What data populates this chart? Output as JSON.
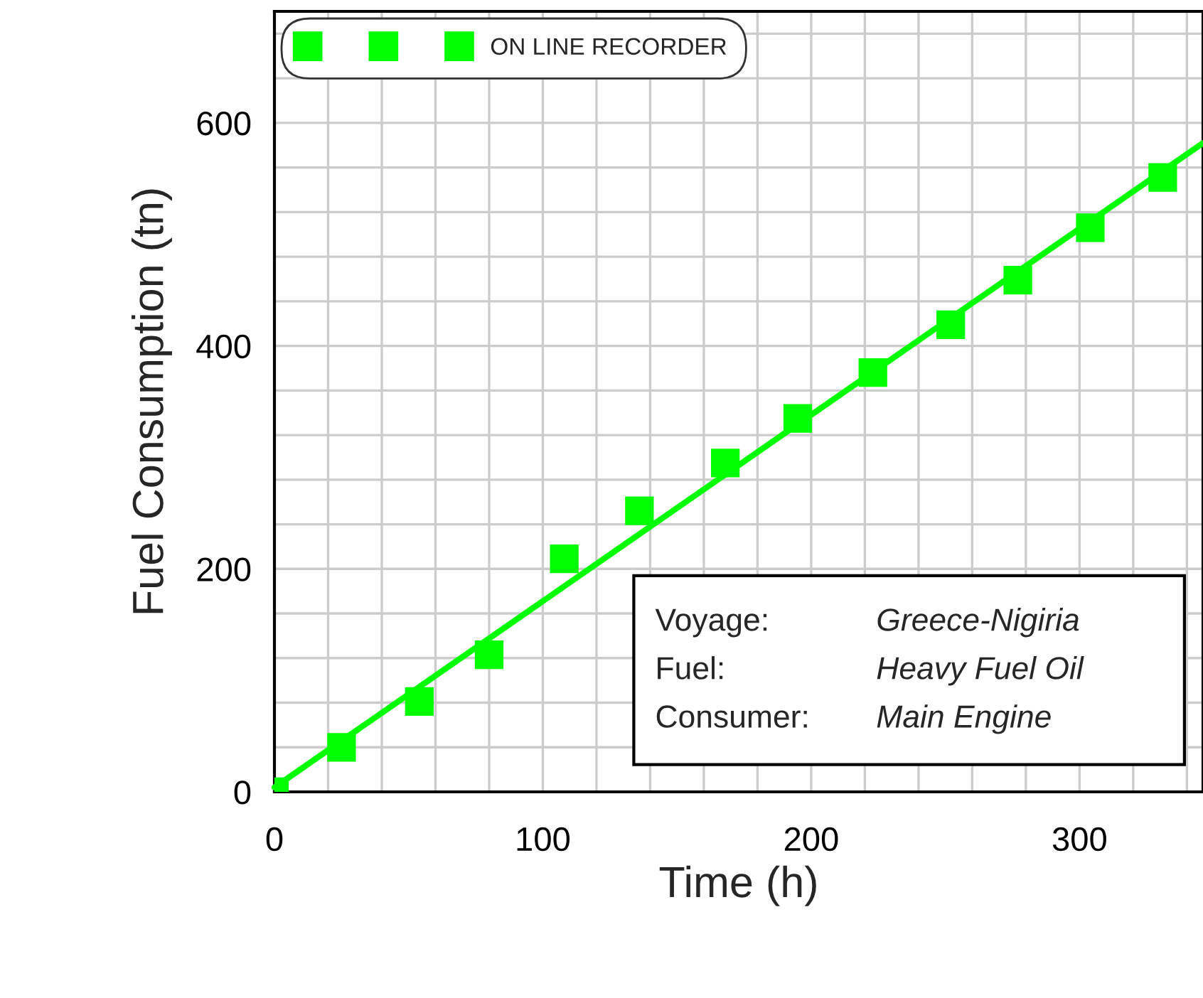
{
  "chart_data": {
    "type": "scatter",
    "xlabel": "Time (h)",
    "ylabel": "Fuel Consumption (tn)",
    "xlim": [
      0,
      346
    ],
    "ylim": [
      0,
      700
    ],
    "xticks": [
      0,
      {
        "value": 20,
        "label": null
      },
      {
        "value": 40,
        "label": null
      },
      {
        "value": 60,
        "label": null
      },
      {
        "value": 80,
        "label": null
      },
      100,
      {
        "value": 120,
        "label": null
      },
      {
        "value": 140,
        "label": null
      },
      {
        "value": 160,
        "label": null
      },
      {
        "value": 180,
        "label": null
      },
      200,
      {
        "value": 220,
        "label": null
      },
      {
        "value": 240,
        "label": null
      },
      {
        "value": 260,
        "label": null
      },
      {
        "value": 280,
        "label": null
      },
      300,
      {
        "value": 320,
        "label": null
      },
      {
        "value": 340,
        "label": null
      }
    ],
    "yticks": [
      0,
      {
        "value": 40,
        "label": null
      },
      {
        "value": 80,
        "label": null
      },
      {
        "value": 120,
        "label": null
      },
      {
        "value": 160,
        "label": null
      },
      200,
      {
        "value": 240,
        "label": null
      },
      {
        "value": 280,
        "label": null
      },
      {
        "value": 320,
        "label": null
      },
      {
        "value": 360,
        "label": null
      },
      400,
      {
        "value": 440,
        "label": null
      },
      {
        "value": 480,
        "label": null
      },
      {
        "value": 520,
        "label": null
      },
      {
        "value": 560,
        "label": null
      },
      600,
      {
        "value": 640,
        "label": null
      },
      {
        "value": 680,
        "label": null
      }
    ],
    "grid": true,
    "legend": "top left",
    "series": [
      {
        "name": "ON LINE RECORDER",
        "marker": "square",
        "color": "#00ff00",
        "x": [
          0,
          25,
          54,
          80,
          108,
          136,
          168,
          195,
          223,
          252,
          277,
          304,
          331
        ],
        "values": [
          0,
          40,
          81,
          123,
          209,
          252,
          295,
          335,
          376,
          419,
          459,
          506,
          551
        ]
      },
      {
        "type": "line",
        "color": "#00ff00",
        "x": [
          0,
          346
        ],
        "values": [
          4,
          582
        ]
      }
    ],
    "annotations": [
      "Voyage:",
      "Greece-Nigiria",
      "Fuel:",
      "Heavy Fuel Oil",
      "Consumer:",
      "Main Engine"
    ]
  }
}
